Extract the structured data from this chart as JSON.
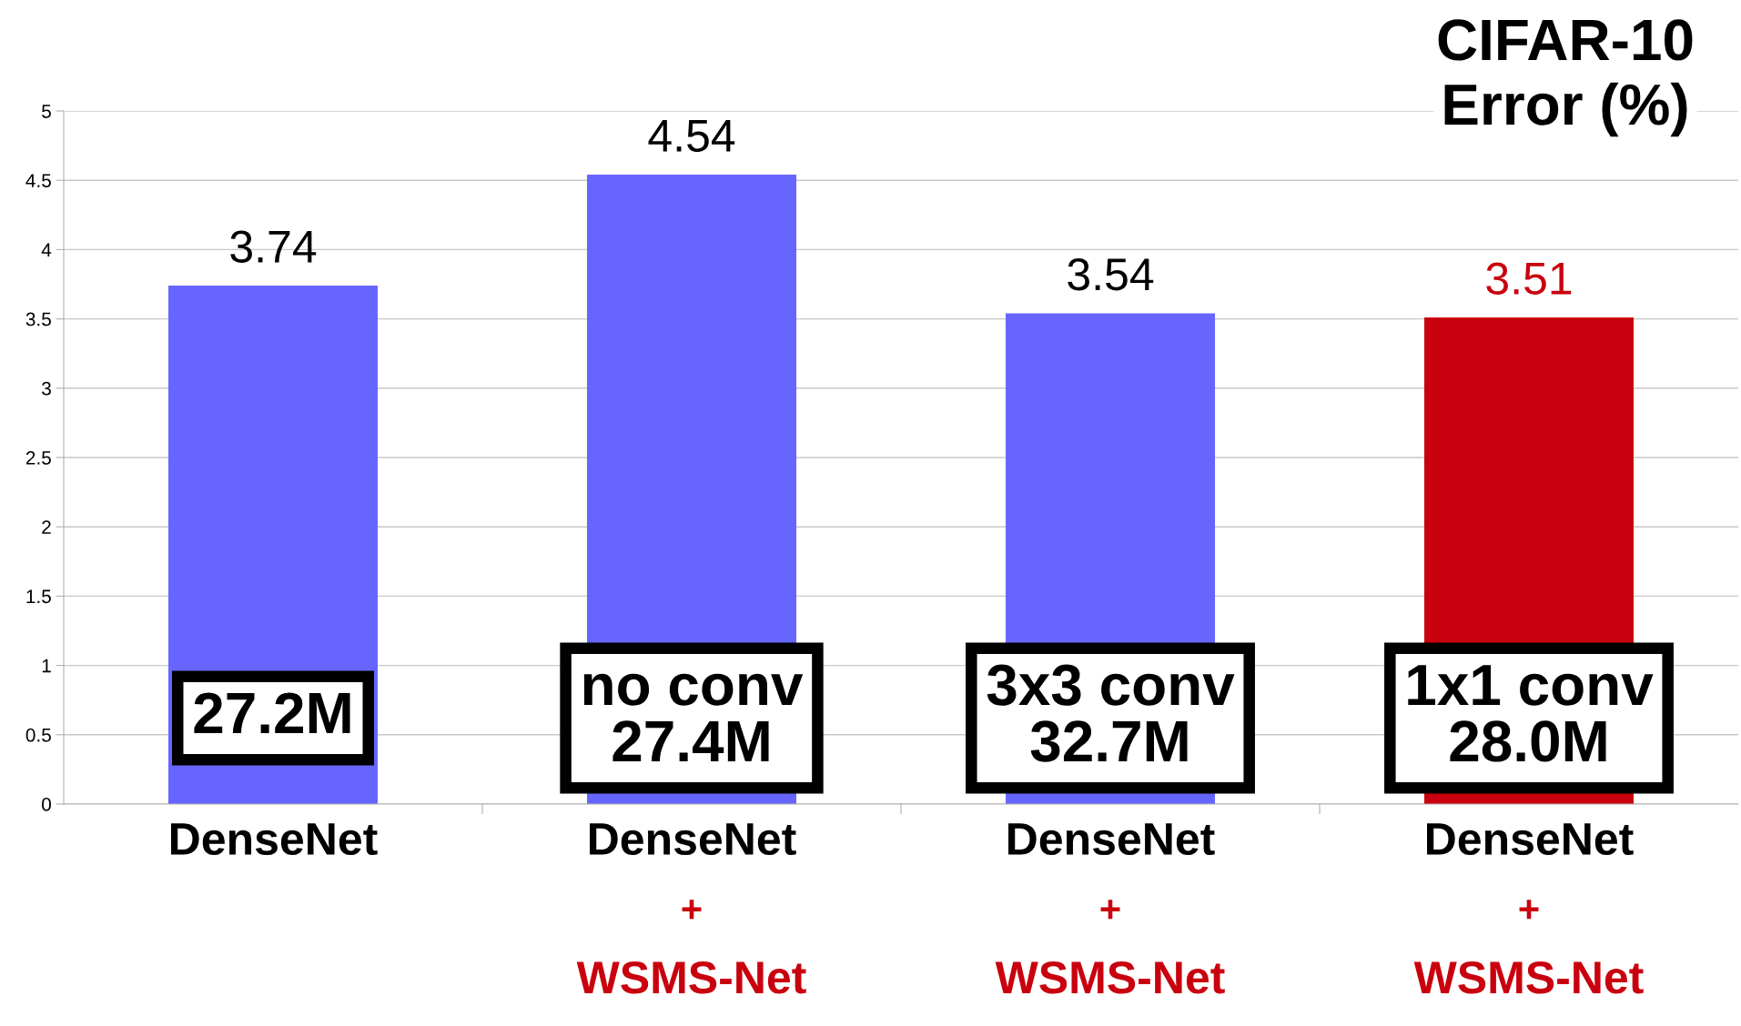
{
  "chart_data": {
    "type": "bar",
    "title": "CIFAR-10\nError (%)",
    "categories": [
      "DenseNet",
      "DenseNet\n+\nWSMS-Net",
      "DenseNet\n+\nWSMS-Net",
      "DenseNet\n+\nWSMS-Net"
    ],
    "values": [
      3.74,
      4.54,
      3.54,
      3.51
    ],
    "colors": [
      "#6666ff",
      "#6666ff",
      "#6666ff",
      "#c9000e"
    ],
    "ylim": [
      0,
      5
    ],
    "yticks": [
      0,
      0.5,
      1,
      1.5,
      2,
      2.5,
      3,
      3.5,
      4,
      4.5,
      5
    ],
    "grid": "y",
    "data_labels": true,
    "annotations": [
      "27.2M",
      "no conv\n27.4M",
      "3x3 conv\n32.7M",
      "1x1 conv\n28.0M"
    ]
  }
}
